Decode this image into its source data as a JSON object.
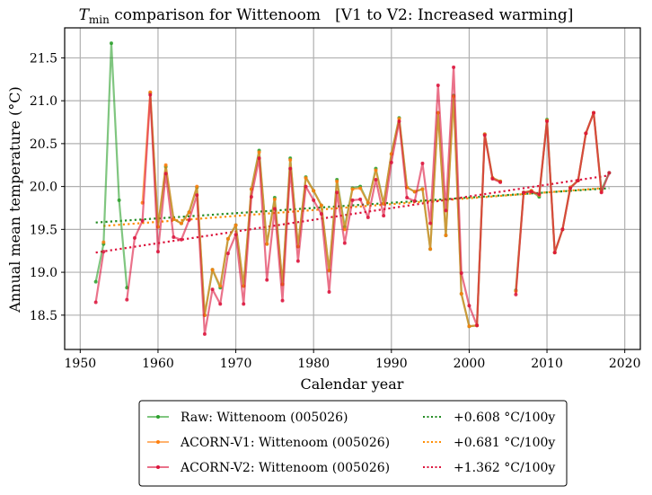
{
  "chart_data": {
    "type": "line",
    "title": "T_min comparison for Wittenoom   [V1 to V2: Increased warming]",
    "title_parts": {
      "symbol": "T",
      "subscript": "min",
      "rest": " comparison for Wittenoom   [V1 to V2: Increased warming]"
    },
    "xlabel": "Calendar year",
    "ylabel": "Annual mean temperature (°C)",
    "xlim": [
      1948,
      2022
    ],
    "ylim": [
      18.1,
      21.85
    ],
    "xticks": [
      1950,
      1960,
      1970,
      1980,
      1990,
      2000,
      2010,
      2020
    ],
    "yticks": [
      18.5,
      19.0,
      19.5,
      20.0,
      20.5,
      21.0,
      21.5
    ],
    "xtick_labels": [
      "1950",
      "1960",
      "1970",
      "1980",
      "1990",
      "2000",
      "2010",
      "2020"
    ],
    "ytick_labels": [
      "18.5",
      "19.0",
      "19.5",
      "20.0",
      "20.5",
      "21.0",
      "21.5"
    ],
    "grid": true,
    "legend_position": "below",
    "series": [
      {
        "name": "Raw: Wittenoom (005026)",
        "color": "#2ca02c",
        "style": "solid",
        "points": [
          [
            1952,
            18.89
          ],
          [
            1953,
            19.33
          ],
          [
            1954,
            21.67
          ],
          [
            1955,
            19.84
          ],
          [
            1956,
            18.82
          ],
          [
            1958,
            null
          ],
          [
            1959,
            21.09
          ],
          [
            1960,
            19.53
          ],
          [
            1961,
            20.23
          ],
          [
            1962,
            19.62
          ],
          [
            1963,
            19.57
          ],
          [
            1964,
            19.7
          ],
          [
            1965,
            19.99
          ],
          [
            1966,
            18.5
          ],
          [
            1967,
            19.03
          ],
          [
            1968,
            18.82
          ],
          [
            1969,
            19.39
          ],
          [
            1970,
            19.55
          ],
          [
            1971,
            18.84
          ],
          [
            1972,
            19.97
          ],
          [
            1973,
            20.42
          ],
          [
            1974,
            19.33
          ],
          [
            1975,
            19.87
          ],
          [
            1976,
            18.86
          ],
          [
            1977,
            20.33
          ],
          [
            1978,
            19.3
          ],
          [
            1979,
            20.11
          ],
          [
            1980,
            19.95
          ],
          [
            1981,
            19.78
          ],
          [
            1982,
            19.02
          ],
          [
            1983,
            20.08
          ],
          [
            1984,
            19.53
          ],
          [
            1985,
            19.98
          ],
          [
            1986,
            20.0
          ],
          [
            1987,
            19.81
          ],
          [
            1988,
            20.21
          ],
          [
            1989,
            19.8
          ],
          [
            1990,
            20.38
          ],
          [
            1991,
            20.8
          ],
          [
            1992,
            19.99
          ],
          [
            1993,
            19.94
          ],
          [
            1994,
            19.97
          ],
          [
            1995,
            19.27
          ],
          [
            1996,
            20.86
          ],
          [
            1997,
            19.43
          ],
          [
            1998,
            21.06
          ],
          [
            1999,
            18.75
          ],
          [
            2000,
            18.37
          ],
          [
            2001,
            18.38
          ],
          [
            2002,
            20.61
          ],
          [
            2003,
            20.1
          ],
          [
            2004,
            20.06
          ],
          [
            2005,
            null
          ],
          [
            2006,
            18.79
          ],
          [
            2007,
            19.93
          ],
          [
            2008,
            19.95
          ],
          [
            2009,
            19.88
          ],
          [
            2010,
            20.78
          ],
          [
            2011,
            19.23
          ],
          [
            2012,
            19.5
          ],
          [
            2013,
            19.99
          ],
          [
            2014,
            20.07
          ],
          [
            2015,
            20.62
          ],
          [
            2016,
            20.86
          ],
          [
            2017,
            19.96
          ],
          [
            2018,
            20.16
          ]
        ]
      },
      {
        "name": "ACORN-V1: Wittenoom (005026)",
        "color": "#ff7f0e",
        "style": "solid",
        "points": [
          [
            1953,
            19.35
          ],
          [
            1954,
            null
          ],
          [
            1958,
            19.81
          ],
          [
            1959,
            21.1
          ],
          [
            1960,
            19.53
          ],
          [
            1961,
            20.25
          ],
          [
            1962,
            19.62
          ],
          [
            1963,
            19.57
          ],
          [
            1964,
            19.7
          ],
          [
            1965,
            20.0
          ],
          [
            1966,
            18.5
          ],
          [
            1967,
            19.03
          ],
          [
            1968,
            18.84
          ],
          [
            1969,
            19.39
          ],
          [
            1970,
            19.55
          ],
          [
            1971,
            18.84
          ],
          [
            1972,
            19.97
          ],
          [
            1973,
            20.4
          ],
          [
            1974,
            19.33
          ],
          [
            1975,
            19.85
          ],
          [
            1976,
            18.86
          ],
          [
            1977,
            20.31
          ],
          [
            1978,
            19.3
          ],
          [
            1979,
            20.1
          ],
          [
            1980,
            19.95
          ],
          [
            1981,
            19.78
          ],
          [
            1982,
            19.02
          ],
          [
            1983,
            20.06
          ],
          [
            1984,
            19.5
          ],
          [
            1985,
            19.97
          ],
          [
            1986,
            19.98
          ],
          [
            1987,
            19.81
          ],
          [
            1988,
            20.19
          ],
          [
            1989,
            19.8
          ],
          [
            1990,
            20.38
          ],
          [
            1991,
            20.79
          ],
          [
            1992,
            19.99
          ],
          [
            1993,
            19.94
          ],
          [
            1994,
            19.97
          ],
          [
            1995,
            19.27
          ],
          [
            1996,
            20.86
          ],
          [
            1997,
            19.43
          ],
          [
            1998,
            21.05
          ],
          [
            1999,
            18.75
          ],
          [
            2000,
            18.37
          ],
          [
            2001,
            18.38
          ],
          [
            2002,
            20.61
          ],
          [
            2003,
            20.1
          ],
          [
            2004,
            20.06
          ],
          [
            2005,
            null
          ],
          [
            2006,
            18.78
          ],
          [
            2007,
            19.93
          ],
          [
            2008,
            19.95
          ],
          [
            2009,
            19.9
          ],
          [
            2010,
            20.77
          ],
          [
            2011,
            19.23
          ],
          [
            2012,
            19.5
          ],
          [
            2013,
            19.99
          ],
          [
            2014,
            20.07
          ],
          [
            2015,
            20.62
          ],
          [
            2016,
            20.86
          ],
          [
            2017,
            19.94
          ]
        ]
      },
      {
        "name": "ACORN-V2: Wittenoom (005026)",
        "color": "#dc143c",
        "style": "solid",
        "points": [
          [
            1952,
            18.65
          ],
          [
            1953,
            19.24
          ],
          [
            1954,
            null
          ],
          [
            1956,
            18.68
          ],
          [
            1957,
            19.4
          ],
          [
            1958,
            19.6
          ],
          [
            1959,
            21.07
          ],
          [
            1960,
            19.24
          ],
          [
            1961,
            20.15
          ],
          [
            1962,
            19.41
          ],
          [
            1963,
            19.38
          ],
          [
            1964,
            19.61
          ],
          [
            1965,
            19.9
          ],
          [
            1966,
            18.28
          ],
          [
            1967,
            18.8
          ],
          [
            1968,
            18.63
          ],
          [
            1969,
            19.22
          ],
          [
            1970,
            19.44
          ],
          [
            1971,
            18.63
          ],
          [
            1972,
            19.88
          ],
          [
            1973,
            20.33
          ],
          [
            1974,
            18.91
          ],
          [
            1975,
            19.74
          ],
          [
            1976,
            18.67
          ],
          [
            1977,
            20.21
          ],
          [
            1978,
            19.13
          ],
          [
            1979,
            20.0
          ],
          [
            1980,
            19.84
          ],
          [
            1981,
            19.68
          ],
          [
            1982,
            18.77
          ],
          [
            1983,
            19.93
          ],
          [
            1984,
            19.34
          ],
          [
            1985,
            19.84
          ],
          [
            1986,
            19.85
          ],
          [
            1987,
            19.64
          ],
          [
            1988,
            20.08
          ],
          [
            1989,
            19.66
          ],
          [
            1990,
            20.28
          ],
          [
            1991,
            20.76
          ],
          [
            1992,
            19.87
          ],
          [
            1993,
            19.83
          ],
          [
            1994,
            20.27
          ],
          [
            1995,
            19.57
          ],
          [
            1996,
            21.18
          ],
          [
            1997,
            19.72
          ],
          [
            1998,
            21.39
          ],
          [
            1999,
            18.99
          ],
          [
            2000,
            18.61
          ],
          [
            2001,
            18.38
          ],
          [
            2002,
            20.6
          ],
          [
            2003,
            20.09
          ],
          [
            2004,
            20.05
          ],
          [
            2005,
            null
          ],
          [
            2006,
            18.74
          ],
          [
            2007,
            19.93
          ],
          [
            2008,
            19.94
          ],
          [
            2009,
            19.91
          ],
          [
            2010,
            20.76
          ],
          [
            2011,
            19.23
          ],
          [
            2012,
            19.5
          ],
          [
            2013,
            19.98
          ],
          [
            2014,
            20.07
          ],
          [
            2015,
            20.62
          ],
          [
            2016,
            20.86
          ],
          [
            2017,
            19.93
          ],
          [
            2018,
            20.16
          ]
        ]
      }
    ],
    "trends": [
      {
        "name": "+0.608 °C/100y",
        "label": "+0.608 °C/100y",
        "color": "#228b22",
        "style": "dotted",
        "x": [
          1952,
          2018
        ],
        "y": [
          19.58,
          19.98
        ]
      },
      {
        "name": "+0.681 °C/100y",
        "label": "+0.681 °C/100y",
        "color": "#ff8c00",
        "style": "dotted",
        "x": [
          1953,
          2017
        ],
        "y": [
          19.54,
          19.98
        ]
      },
      {
        "name": "+1.362 °C/100y",
        "label": "+1.362 °C/100y",
        "color": "#dc143c",
        "style": "dotted",
        "x": [
          1952,
          2018
        ],
        "y": [
          19.23,
          20.13
        ]
      }
    ]
  }
}
